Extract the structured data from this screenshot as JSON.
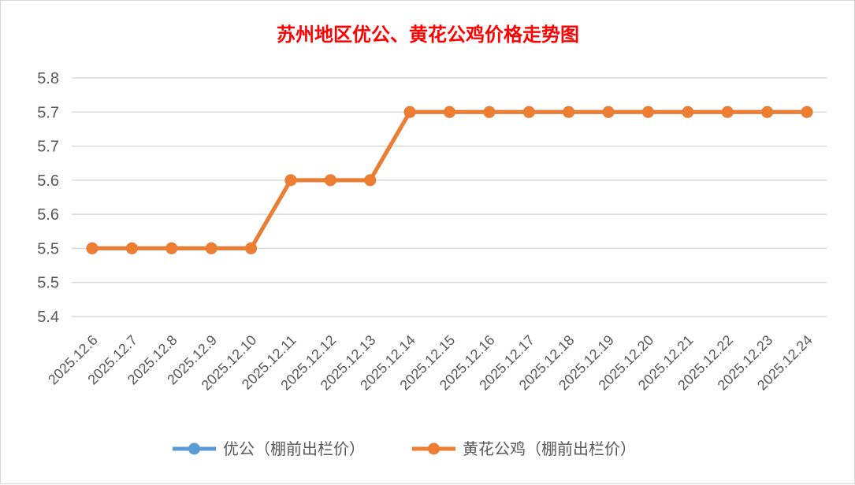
{
  "chart_data": {
    "type": "line",
    "title": "苏州地区优公、黄花公鸡价格走势图",
    "categories": [
      "2025.12.6",
      "2025.12.7",
      "2025.12.8",
      "2025.12.9",
      "2025.12.10",
      "2025.12.11",
      "2025.12.12",
      "2025.12.13",
      "2025.12.14",
      "2025.12.15",
      "2025.12.16",
      "2025.12.17",
      "2025.12.18",
      "2025.12.19",
      "2025.12.20",
      "2025.12.21",
      "2025.12.22",
      "2025.12.23",
      "2025.12.24"
    ],
    "y_ticks": [
      {
        "value": 5.45,
        "label": "5.4"
      },
      {
        "value": 5.5,
        "label": "5.5"
      },
      {
        "value": 5.55,
        "label": "5.5"
      },
      {
        "value": 5.6,
        "label": "5.6"
      },
      {
        "value": 5.65,
        "label": "5.6"
      },
      {
        "value": 5.7,
        "label": "5.7"
      },
      {
        "value": 5.75,
        "label": "5.7"
      },
      {
        "value": 5.8,
        "label": "5.8"
      }
    ],
    "ylim": [
      5.45,
      5.8
    ],
    "grid": true,
    "legend_position": "bottom",
    "series": [
      {
        "name": "优公（棚前出栏价）",
        "color": "#5b9bd5",
        "values": [
          5.55,
          5.55,
          5.55,
          5.55,
          5.55,
          5.65,
          5.65,
          5.65,
          5.75,
          5.75,
          5.75,
          5.75,
          5.75,
          5.75,
          5.75,
          5.75,
          5.75,
          5.75,
          5.75
        ]
      },
      {
        "name": "黄花公鸡（棚前出栏价）",
        "color": "#ed7d31",
        "values": [
          5.55,
          5.55,
          5.55,
          5.55,
          5.55,
          5.65,
          5.65,
          5.65,
          5.75,
          5.75,
          5.75,
          5.75,
          5.75,
          5.75,
          5.75,
          5.75,
          5.75,
          5.75,
          5.75
        ]
      }
    ]
  }
}
